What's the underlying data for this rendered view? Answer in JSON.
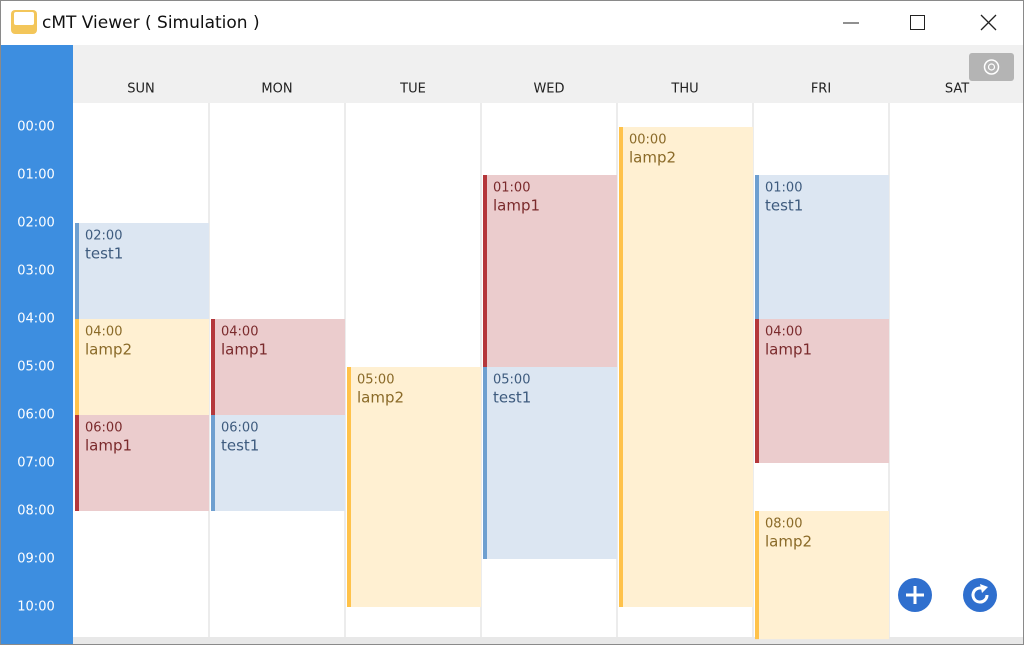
{
  "window": {
    "title": "cMT Viewer ( Simulation )"
  },
  "calendar": {
    "days": [
      "SUN",
      "MON",
      "TUE",
      "WED",
      "THU",
      "FRI",
      "SAT"
    ],
    "hours": [
      "00:00",
      "01:00",
      "02:00",
      "03:00",
      "04:00",
      "05:00",
      "06:00",
      "07:00",
      "08:00",
      "09:00",
      "10:00"
    ],
    "events": [
      {
        "time": "02:00",
        "name": "test1"
      },
      {
        "time": "04:00",
        "name": "lamp2"
      },
      {
        "time": "06:00",
        "name": "lamp1"
      },
      {
        "time": "04:00",
        "name": "lamp1"
      },
      {
        "time": "06:00",
        "name": "test1"
      },
      {
        "time": "05:00",
        "name": "lamp2"
      },
      {
        "time": "01:00",
        "name": "lamp1"
      },
      {
        "time": "05:00",
        "name": "test1"
      },
      {
        "time": "00:00",
        "name": "lamp2"
      },
      {
        "time": "01:00",
        "name": "test1"
      },
      {
        "time": "04:00",
        "name": "lamp1"
      },
      {
        "time": "08:00",
        "name": "lamp2"
      }
    ]
  }
}
